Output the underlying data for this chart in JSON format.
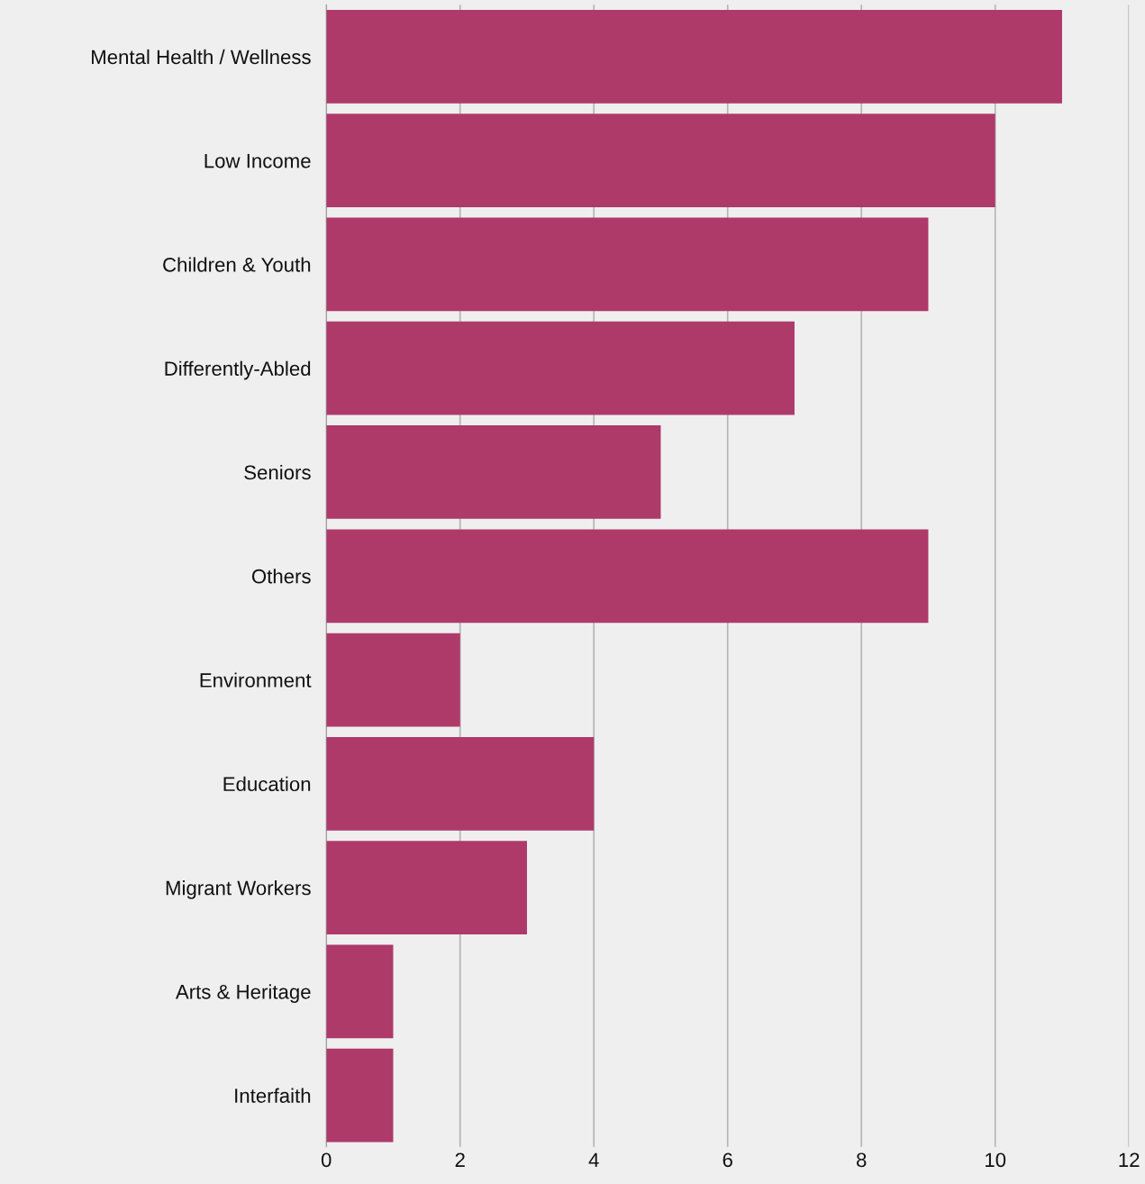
{
  "chart_data": {
    "type": "bar",
    "orientation": "horizontal",
    "categories": [
      "Mental Health / Wellness",
      "Low Income",
      "Children & Youth",
      "Differently-Abled",
      "Seniors",
      "Others",
      "Environment",
      "Education",
      "Migrant Workers",
      "Arts & Heritage",
      "Interfaith"
    ],
    "values": [
      11,
      10,
      9,
      7,
      5,
      9,
      2,
      4,
      3,
      1,
      1
    ],
    "color": "#ae3a6a",
    "xlim": [
      0,
      12
    ],
    "xticks": [
      0,
      2,
      4,
      6,
      8,
      10,
      12
    ],
    "grid": "x",
    "legend": false
  }
}
